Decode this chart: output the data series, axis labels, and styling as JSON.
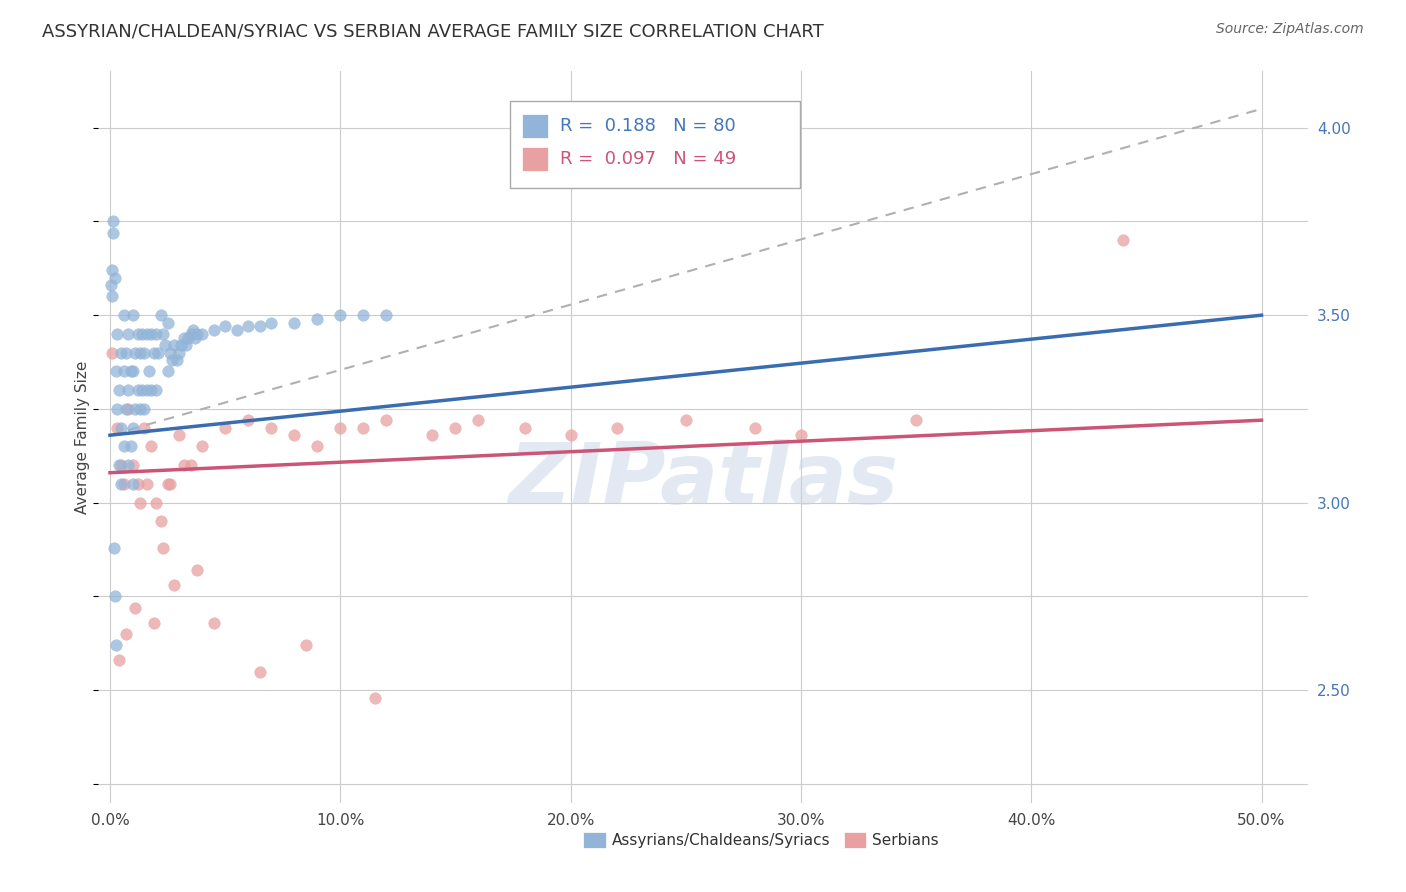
{
  "title": "ASSYRIAN/CHALDEAN/SYRIAC VS SERBIAN AVERAGE FAMILY SIZE CORRELATION CHART",
  "source": "Source: ZipAtlas.com",
  "ylabel": "Average Family Size",
  "xlabel_ticks": [
    "0.0%",
    "10.0%",
    "20.0%",
    "30.0%",
    "40.0%",
    "50.0%"
  ],
  "xlabel_vals": [
    0,
    10,
    20,
    30,
    40,
    50
  ],
  "ylim": [
    2.2,
    4.15
  ],
  "xlim": [
    -0.5,
    52
  ],
  "right_yticks": [
    2.5,
    3.0,
    3.5,
    4.0
  ],
  "legend1_R": "0.188",
  "legend1_N": "80",
  "legend2_R": "0.097",
  "legend2_N": "49",
  "blue_color": "#92b4d8",
  "pink_color": "#e8a0a0",
  "blue_trend_color": "#3a6cb0",
  "pink_trend_color": "#cc5577",
  "gray_dash_color": "#b0b0b0",
  "watermark": "ZIPatlas",
  "blue_scatter_x": [
    0.1,
    0.15,
    0.2,
    0.25,
    0.3,
    0.3,
    0.4,
    0.4,
    0.5,
    0.5,
    0.5,
    0.6,
    0.6,
    0.6,
    0.7,
    0.7,
    0.8,
    0.8,
    0.8,
    0.9,
    0.9,
    1.0,
    1.0,
    1.0,
    1.0,
    1.1,
    1.1,
    1.2,
    1.2,
    1.3,
    1.3,
    1.4,
    1.4,
    1.5,
    1.5,
    1.6,
    1.6,
    1.7,
    1.8,
    1.8,
    1.9,
    2.0,
    2.0,
    2.1,
    2.2,
    2.3,
    2.4,
    2.5,
    2.5,
    2.6,
    2.7,
    2.8,
    2.9,
    3.0,
    3.1,
    3.2,
    3.3,
    3.4,
    3.5,
    3.6,
    3.7,
    3.8,
    4.0,
    4.5,
    5.0,
    5.5,
    6.0,
    6.5,
    7.0,
    8.0,
    9.0,
    10.0,
    11.0,
    12.0,
    0.05,
    0.08,
    0.12,
    0.18,
    0.22,
    0.28
  ],
  "blue_scatter_y": [
    3.55,
    3.75,
    3.6,
    3.35,
    3.45,
    3.25,
    3.3,
    3.1,
    3.4,
    3.2,
    3.05,
    3.5,
    3.35,
    3.15,
    3.4,
    3.25,
    3.45,
    3.3,
    3.1,
    3.35,
    3.15,
    3.5,
    3.35,
    3.2,
    3.05,
    3.4,
    3.25,
    3.45,
    3.3,
    3.4,
    3.25,
    3.45,
    3.3,
    3.4,
    3.25,
    3.45,
    3.3,
    3.35,
    3.45,
    3.3,
    3.4,
    3.45,
    3.3,
    3.4,
    3.5,
    3.45,
    3.42,
    3.48,
    3.35,
    3.4,
    3.38,
    3.42,
    3.38,
    3.4,
    3.42,
    3.44,
    3.42,
    3.44,
    3.45,
    3.46,
    3.44,
    3.45,
    3.45,
    3.46,
    3.47,
    3.46,
    3.47,
    3.47,
    3.48,
    3.48,
    3.49,
    3.5,
    3.5,
    3.5,
    3.58,
    3.62,
    3.72,
    2.88,
    2.75,
    2.62
  ],
  "pink_scatter_x": [
    0.1,
    0.3,
    0.5,
    0.6,
    0.8,
    1.0,
    1.2,
    1.3,
    1.5,
    1.6,
    1.8,
    2.0,
    2.2,
    2.3,
    2.5,
    2.8,
    3.0,
    3.2,
    3.5,
    4.0,
    5.0,
    6.0,
    7.0,
    8.0,
    9.0,
    10.0,
    11.0,
    12.0,
    14.0,
    15.0,
    16.0,
    18.0,
    20.0,
    22.0,
    25.0,
    28.0,
    30.0,
    35.0,
    0.4,
    0.7,
    1.1,
    1.9,
    2.6,
    3.8,
    4.5,
    6.5,
    8.5,
    11.5,
    44.0
  ],
  "pink_scatter_y": [
    3.4,
    3.2,
    3.1,
    3.05,
    3.25,
    3.1,
    3.05,
    3.0,
    3.2,
    3.05,
    3.15,
    3.0,
    2.95,
    2.88,
    3.05,
    2.78,
    3.18,
    3.1,
    3.1,
    3.15,
    3.2,
    3.22,
    3.2,
    3.18,
    3.15,
    3.2,
    3.2,
    3.22,
    3.18,
    3.2,
    3.22,
    3.2,
    3.18,
    3.2,
    3.22,
    3.2,
    3.18,
    3.22,
    2.58,
    2.65,
    2.72,
    2.68,
    3.05,
    2.82,
    2.68,
    2.55,
    2.62,
    2.48,
    3.7
  ],
  "blue_trend_x0": 0.0,
  "blue_trend_x1": 50.0,
  "blue_trend_y0": 3.18,
  "blue_trend_y1": 3.5,
  "pink_trend_x0": 0.0,
  "pink_trend_x1": 50.0,
  "pink_trend_y0": 3.08,
  "pink_trend_y1": 3.22,
  "gray_dash_x0": 0.0,
  "gray_dash_x1": 50.0,
  "gray_dash_y0": 3.18,
  "gray_dash_y1": 4.05
}
